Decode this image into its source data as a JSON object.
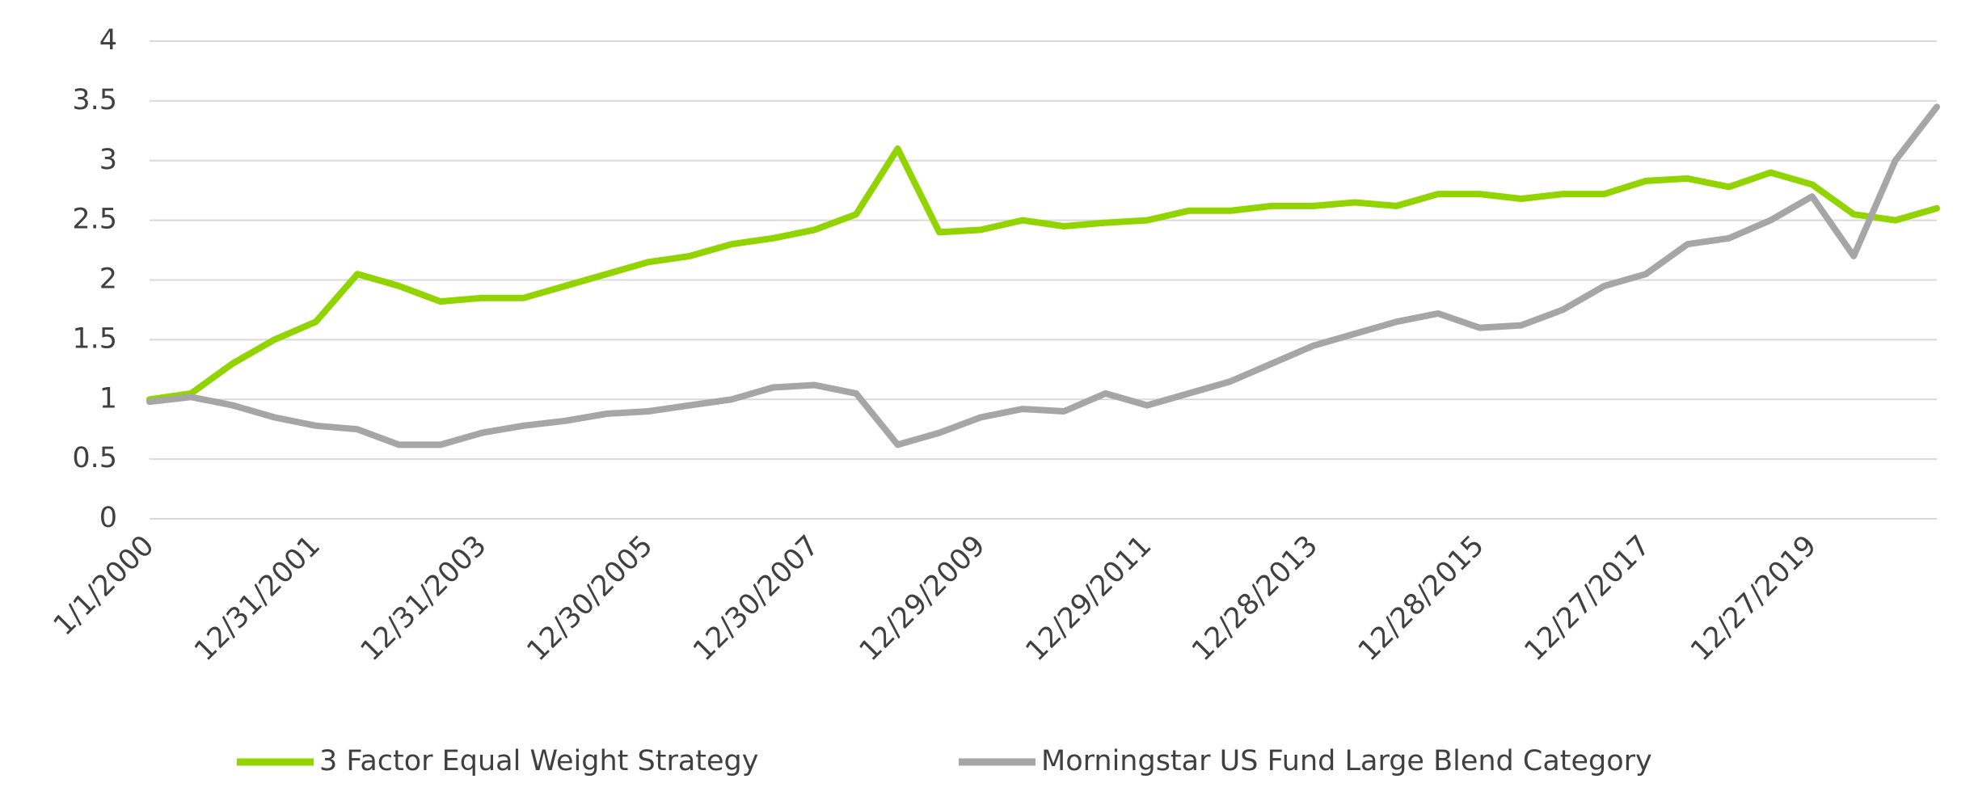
{
  "chart_data": {
    "type": "line",
    "categories": [
      "1/1/2000",
      null,
      null,
      null,
      "12/31/2001",
      null,
      null,
      null,
      "12/31/2003",
      null,
      null,
      null,
      "12/30/2005",
      null,
      null,
      null,
      "12/30/2007",
      null,
      null,
      null,
      "12/29/2009",
      null,
      null,
      null,
      "12/29/2011",
      null,
      null,
      null,
      "12/28/2013",
      null,
      null,
      null,
      "12/28/2015",
      null,
      null,
      null,
      "12/27/2017",
      null,
      null,
      null,
      "12/27/2019",
      null,
      null,
      null
    ],
    "series": [
      {
        "name": "3 Factor Equal Weight Strategy",
        "color": "#92d400",
        "values": [
          1.0,
          1.05,
          1.3,
          1.5,
          1.65,
          2.05,
          1.95,
          1.82,
          1.85,
          1.85,
          1.95,
          2.05,
          2.15,
          2.2,
          2.3,
          2.35,
          2.42,
          2.55,
          3.1,
          2.4,
          2.42,
          2.5,
          2.45,
          2.48,
          2.5,
          2.58,
          2.58,
          2.62,
          2.62,
          2.65,
          2.62,
          2.72,
          2.72,
          2.68,
          2.72,
          2.72,
          2.83,
          2.85,
          2.78,
          2.9,
          2.8,
          2.55,
          2.5,
          2.6
        ]
      },
      {
        "name": "Morningstar US Fund Large Blend Category",
        "color": "#a6a6a6",
        "values": [
          0.98,
          1.02,
          0.95,
          0.85,
          0.78,
          0.75,
          0.62,
          0.62,
          0.72,
          0.78,
          0.82,
          0.88,
          0.9,
          0.95,
          1.0,
          1.1,
          1.12,
          1.05,
          0.62,
          0.72,
          0.85,
          0.92,
          0.9,
          1.05,
          0.95,
          1.05,
          1.15,
          1.3,
          1.45,
          1.55,
          1.65,
          1.72,
          1.6,
          1.62,
          1.75,
          1.95,
          2.05,
          2.3,
          2.35,
          2.5,
          2.7,
          2.2,
          3.0,
          3.45
        ]
      }
    ],
    "ylim": [
      0,
      4
    ],
    "yticks": [
      0,
      0.5,
      1,
      1.5,
      2,
      2.5,
      3,
      3.5,
      4
    ],
    "grid": true,
    "legend": "bottom"
  }
}
